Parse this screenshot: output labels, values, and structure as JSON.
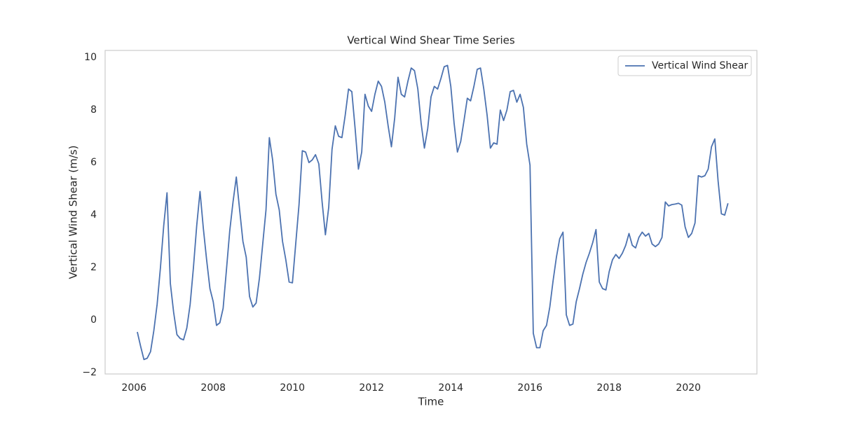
{
  "chart_data": {
    "type": "line",
    "title": "Vertical Wind Shear Time Series",
    "x_label": "Time",
    "y_label": "Vertical Wind Shear (m/s)",
    "x": [
      2006.083,
      2006.167,
      2006.25,
      2006.333,
      2006.417,
      2006.5,
      2006.583,
      2006.667,
      2006.75,
      2006.833,
      2006.917,
      2007,
      2007.083,
      2007.167,
      2007.25,
      2007.333,
      2007.417,
      2007.5,
      2007.583,
      2007.667,
      2007.75,
      2007.833,
      2007.917,
      2008,
      2008.083,
      2008.167,
      2008.25,
      2008.333,
      2008.417,
      2008.5,
      2008.583,
      2008.667,
      2008.75,
      2008.833,
      2008.917,
      2009,
      2009.083,
      2009.167,
      2009.25,
      2009.333,
      2009.417,
      2009.5,
      2009.583,
      2009.667,
      2009.75,
      2009.833,
      2009.917,
      2010,
      2010.083,
      2010.167,
      2010.25,
      2010.333,
      2010.417,
      2010.5,
      2010.583,
      2010.667,
      2010.75,
      2010.833,
      2010.917,
      2011,
      2011.083,
      2011.167,
      2011.25,
      2011.333,
      2011.417,
      2011.5,
      2011.583,
      2011.667,
      2011.75,
      2011.833,
      2011.917,
      2012,
      2012.083,
      2012.167,
      2012.25,
      2012.333,
      2012.417,
      2012.5,
      2012.583,
      2012.667,
      2012.75,
      2012.833,
      2012.917,
      2013,
      2013.083,
      2013.167,
      2013.25,
      2013.333,
      2013.417,
      2013.5,
      2013.583,
      2013.667,
      2013.75,
      2013.833,
      2013.917,
      2014,
      2014.083,
      2014.167,
      2014.25,
      2014.333,
      2014.417,
      2014.5,
      2014.583,
      2014.667,
      2014.75,
      2014.833,
      2014.917,
      2015,
      2015.083,
      2015.167,
      2015.25,
      2015.333,
      2015.417,
      2015.5,
      2015.583,
      2015.667,
      2015.75,
      2015.833,
      2015.917,
      2016,
      2016.083,
      2016.167,
      2016.25,
      2016.333,
      2016.417,
      2016.5,
      2016.583,
      2016.667,
      2016.75,
      2016.833,
      2016.917,
      2017,
      2017.083,
      2017.167,
      2017.25,
      2017.333,
      2017.417,
      2017.5,
      2017.583,
      2017.667,
      2017.75,
      2017.833,
      2017.917,
      2018,
      2018.083,
      2018.167,
      2018.25,
      2018.333,
      2018.417,
      2018.5,
      2018.583,
      2018.667,
      2018.75,
      2018.833,
      2018.917,
      2019,
      2019.083,
      2019.167,
      2019.25,
      2019.333,
      2019.417,
      2019.5,
      2019.583,
      2019.667,
      2019.75,
      2019.833,
      2019.917,
      2020,
      2020.083,
      2020.167,
      2020.25,
      2020.333,
      2020.417,
      2020.5,
      2020.583,
      2020.667,
      2020.75,
      2020.833,
      2020.917,
      2021
    ],
    "series": [
      {
        "name": "Vertical Wind Shear",
        "color": "#4c72b0",
        "values": [
          -0.45,
          -1.0,
          -1.5,
          -1.45,
          -1.2,
          -0.4,
          0.6,
          2.0,
          3.6,
          4.85,
          1.4,
          0.3,
          -0.55,
          -0.7,
          -0.75,
          -0.3,
          0.6,
          2.0,
          3.6,
          4.9,
          3.5,
          2.3,
          1.2,
          0.7,
          -0.2,
          -0.1,
          0.45,
          1.9,
          3.4,
          4.5,
          5.45,
          4.2,
          3.0,
          2.4,
          0.9,
          0.5,
          0.65,
          1.6,
          2.9,
          4.2,
          6.95,
          6.1,
          4.8,
          4.2,
          3.0,
          2.3,
          1.45,
          1.42,
          2.9,
          4.4,
          6.45,
          6.4,
          6.0,
          6.1,
          6.3,
          5.95,
          4.5,
          3.25,
          4.3,
          6.5,
          7.4,
          7.0,
          6.95,
          7.8,
          8.8,
          8.7,
          7.3,
          5.75,
          6.4,
          8.6,
          8.15,
          7.95,
          8.6,
          9.1,
          8.9,
          8.3,
          7.4,
          6.6,
          7.7,
          9.25,
          8.6,
          8.5,
          9.1,
          9.6,
          9.5,
          8.8,
          7.5,
          6.55,
          7.3,
          8.5,
          8.9,
          8.8,
          9.2,
          9.65,
          9.7,
          8.9,
          7.5,
          6.4,
          6.8,
          7.6,
          8.45,
          8.35,
          8.9,
          9.55,
          9.6,
          8.8,
          7.8,
          6.55,
          6.75,
          6.7,
          8.0,
          7.6,
          8.0,
          8.7,
          8.75,
          8.3,
          8.6,
          8.1,
          6.7,
          5.9,
          -0.5,
          -1.05,
          -1.05,
          -0.4,
          -0.2,
          0.5,
          1.5,
          2.4,
          3.1,
          3.35,
          0.2,
          -0.2,
          -0.15,
          0.7,
          1.2,
          1.75,
          2.2,
          2.55,
          2.95,
          3.45,
          1.45,
          1.2,
          1.15,
          1.85,
          2.3,
          2.5,
          2.35,
          2.55,
          2.85,
          3.3,
          2.85,
          2.75,
          3.15,
          3.35,
          3.2,
          3.3,
          2.9,
          2.8,
          2.9,
          3.15,
          4.5,
          4.35,
          4.4,
          4.42,
          4.45,
          4.38,
          3.55,
          3.15,
          3.3,
          3.7,
          5.5,
          5.45,
          5.5,
          5.75,
          6.6,
          6.9,
          5.3,
          4.05,
          4.0,
          4.45
        ]
      }
    ],
    "xlim": [
      2005.27,
      2021.73
    ],
    "xticks": [
      2006,
      2008,
      2010,
      2012,
      2014,
      2016,
      2018,
      2020
    ],
    "ylim": [
      -2.05,
      10.27
    ],
    "yticks": [
      {
        "value": -2,
        "label": "−2"
      },
      0,
      2,
      4,
      6,
      8,
      10
    ],
    "grid": false,
    "legend": "upper right"
  }
}
